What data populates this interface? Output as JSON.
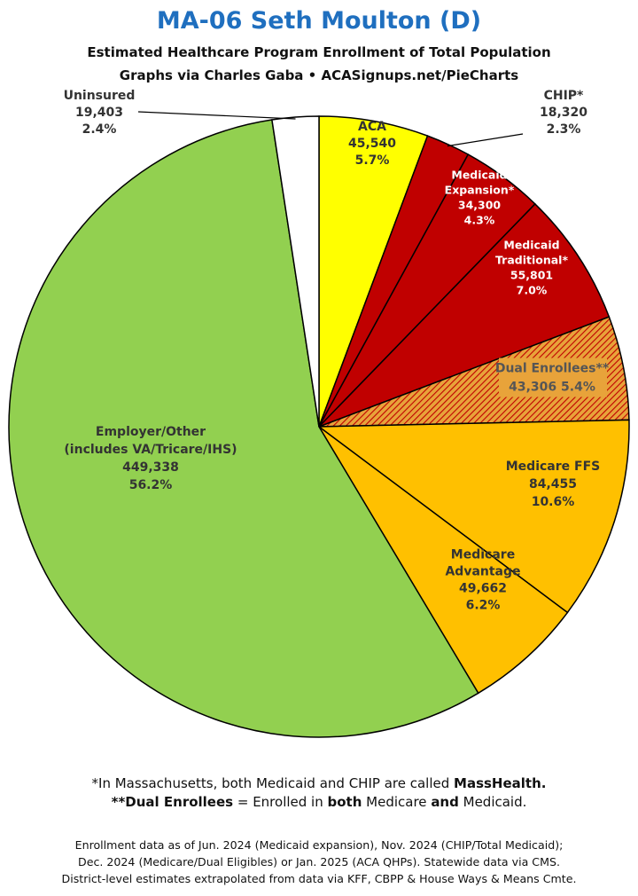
{
  "header": {
    "title": "MA-06 Seth Moulton (D)",
    "subtitle": "Estimated Healthcare Program Enrollment of Total Population",
    "credit": "Graphs via Charles Gaba  •  ACASignups.net/PieCharts"
  },
  "chart_data": {
    "type": "pie",
    "start_angle_deg": 0,
    "direction": "clockwise",
    "slices": [
      {
        "key": "aca",
        "lines": [
          "ACA",
          "45,540",
          "5.7%"
        ],
        "value": 45540,
        "percent": 5.7,
        "color": "#ffff00",
        "pattern": null,
        "labelColor": "#333333"
      },
      {
        "key": "chip",
        "lines": [
          "CHIP*",
          "18,320",
          "2.3%"
        ],
        "value": 18320,
        "percent": 2.3,
        "color": "#c00000",
        "pattern": null,
        "labelColor": "#333333"
      },
      {
        "key": "medicaid-expansion",
        "lines": [
          "Medicaid",
          "Expansion*",
          "34,300",
          "4.3%"
        ],
        "value": 34300,
        "percent": 4.3,
        "color": "#c00000",
        "pattern": null,
        "labelColor": "#ffffff"
      },
      {
        "key": "medicaid-traditional",
        "lines": [
          "Medicaid",
          "Traditional*",
          "55,801",
          "7.0%"
        ],
        "value": 55801,
        "percent": 7.0,
        "color": "#c00000",
        "pattern": null,
        "labelColor": "#ffffff"
      },
      {
        "key": "dual-enrollees",
        "lines": [
          "Dual Enrollees**",
          "43,306 5.4%"
        ],
        "value": 43306,
        "percent": 5.4,
        "color": "#e8a33a",
        "pattern": "hatch",
        "labelColor": "#555555"
      },
      {
        "key": "medicare-ffs",
        "lines": [
          "Medicare FFS",
          "84,455",
          "10.6%"
        ],
        "value": 84455,
        "percent": 10.6,
        "color": "#ffc000",
        "pattern": null,
        "labelColor": "#333333"
      },
      {
        "key": "medicare-advantage",
        "lines": [
          "Medicare",
          "Advantage",
          "49,662",
          "6.2%"
        ],
        "value": 49662,
        "percent": 6.2,
        "color": "#ffc000",
        "pattern": null,
        "labelColor": "#333333"
      },
      {
        "key": "employer-other",
        "lines": [
          "Employer/Other",
          "(includes VA/Tricare/IHS)",
          "449,338",
          "56.2%"
        ],
        "value": 449338,
        "percent": 56.2,
        "color": "#92d050",
        "pattern": null,
        "labelColor": "#333333"
      },
      {
        "key": "uninsured",
        "lines": [
          "Uninsured",
          "19,403",
          "2.4%"
        ],
        "value": 19403,
        "percent": 2.4,
        "color": "#ffffff",
        "pattern": null,
        "labelColor": "#333333"
      }
    ]
  },
  "notes": {
    "line1_pre": "*In Massachusetts, both Medicaid and CHIP are called ",
    "line1_bold": "MassHealth.",
    "line2_b1": "**Dual Enrollees",
    "line2_t1": " = Enrolled in ",
    "line2_b2": "both",
    "line2_t2": " Medicare ",
    "line2_b3": "and",
    "line2_t3": " Medicaid."
  },
  "source": {
    "line1": "Enrollment data as of Jun. 2024 (Medicaid expansion), Nov. 2024 (CHIP/Total Medicaid);",
    "line2": "Dec. 2024 (Medicare/Dual Eligibles) or Jan. 2025 (ACA QHPs). Statewide data via CMS.",
    "line3": "District-level estimates extrapolated from data via KFF, CBPP & House Ways & Means Cmte."
  }
}
